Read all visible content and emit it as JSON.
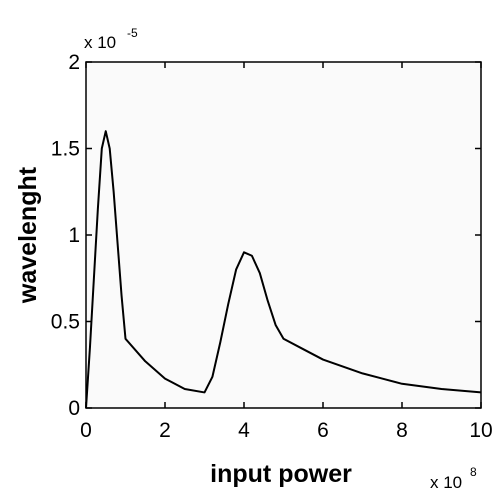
{
  "chart_data": {
    "type": "line",
    "title": "",
    "xlabel": "input power",
    "ylabel": "wavelenght",
    "x_multiplier": {
      "base": "x 10",
      "exponent": "8"
    },
    "y_multiplier": {
      "base": "x 10",
      "exponent": "-5"
    },
    "xlim": [
      0,
      10
    ],
    "ylim": [
      0,
      2
    ],
    "x_ticks": [
      "0",
      "2",
      "4",
      "6",
      "8",
      "10"
    ],
    "y_ticks": [
      "0",
      "0.5",
      "1",
      "1.5",
      "2"
    ],
    "grid": false,
    "legend": "none",
    "colors": {
      "plot_bg": "#fafafa",
      "line": "#000000",
      "axes": "#000000"
    },
    "series": [
      {
        "x": [
          0,
          0.1,
          0.2,
          0.3,
          0.4,
          0.5,
          0.6,
          0.7,
          0.8,
          0.9,
          1.0,
          1.5,
          2.0,
          2.5,
          3.0,
          3.2,
          3.4,
          3.6,
          3.8,
          4.0,
          4.2,
          4.4,
          4.6,
          4.8,
          5.0,
          5.5,
          6.0,
          7.0,
          8.0,
          9.0,
          10.0
        ],
        "values": [
          0,
          0.35,
          0.75,
          1.15,
          1.5,
          1.6,
          1.5,
          1.25,
          0.95,
          0.65,
          0.4,
          0.27,
          0.17,
          0.11,
          0.09,
          0.18,
          0.38,
          0.6,
          0.8,
          0.9,
          0.88,
          0.78,
          0.62,
          0.48,
          0.4,
          0.34,
          0.28,
          0.2,
          0.14,
          0.11,
          0.09
        ]
      }
    ]
  }
}
